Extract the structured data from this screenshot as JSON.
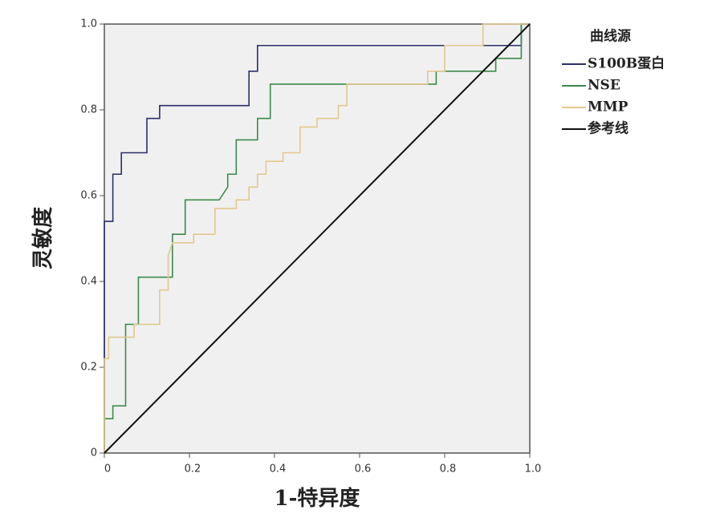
{
  "chart_data": {
    "type": "line",
    "xlabel": "1-特异度",
    "ylabel": "灵敏度",
    "legend_title": "曲线源",
    "legend_position": "right",
    "xlim": [
      0,
      1
    ],
    "ylim": [
      0,
      1
    ],
    "xticks": [
      0,
      0.2,
      0.4,
      0.6,
      0.8,
      {
        "value": 1,
        "label": "1.0"
      }
    ],
    "yticks": [
      0,
      0.2,
      0.4,
      0.6,
      0.8,
      {
        "value": 1,
        "label": "1.0"
      }
    ],
    "series": [
      {
        "name": "S100B蛋白",
        "color": "#2b2f6b",
        "x": [
          0,
          0,
          0.02,
          0.02,
          0.04,
          0.04,
          0.1,
          0.1,
          0.13,
          0.13,
          0.34,
          0.34,
          0.36,
          0.36,
          0.98,
          0.98,
          1
        ],
        "values": [
          0,
          0.54,
          0.54,
          0.65,
          0.65,
          0.7,
          0.7,
          0.78,
          0.78,
          0.81,
          0.81,
          0.89,
          0.89,
          0.95,
          0.95,
          1,
          1
        ]
      },
      {
        "name": "NSE",
        "color": "#3d8a4c",
        "x": [
          0,
          0,
          0.02,
          0.02,
          0.05,
          0.05,
          0.08,
          0.08,
          0.16,
          0.16,
          0.19,
          0.19,
          0.27,
          0.29,
          0.29,
          0.31,
          0.31,
          0.36,
          0.36,
          0.39,
          0.39,
          0.78,
          0.78,
          0.92,
          0.92,
          0.98,
          0.98,
          1
        ],
        "values": [
          0,
          0.08,
          0.08,
          0.11,
          0.11,
          0.3,
          0.3,
          0.41,
          0.41,
          0.51,
          0.51,
          0.59,
          0.59,
          0.62,
          0.65,
          0.65,
          0.73,
          0.73,
          0.78,
          0.78,
          0.86,
          0.86,
          0.89,
          0.89,
          0.92,
          0.92,
          1,
          1
        ]
      },
      {
        "name": "MMP",
        "color": "#e2c88e",
        "x": [
          0,
          0,
          0.01,
          0.01,
          0.07,
          0.07,
          0.13,
          0.13,
          0.15,
          0.15,
          0.16,
          0.21,
          0.21,
          0.26,
          0.26,
          0.31,
          0.31,
          0.34,
          0.34,
          0.36,
          0.36,
          0.38,
          0.38,
          0.42,
          0.42,
          0.46,
          0.46,
          0.5,
          0.5,
          0.55,
          0.55,
          0.57,
          0.57,
          0.76,
          0.76,
          0.8,
          0.8,
          0.89,
          0.89,
          1
        ],
        "values": [
          0,
          0.22,
          0.22,
          0.27,
          0.27,
          0.3,
          0.3,
          0.38,
          0.38,
          0.46,
          0.49,
          0.49,
          0.51,
          0.51,
          0.57,
          0.57,
          0.59,
          0.59,
          0.62,
          0.62,
          0.65,
          0.65,
          0.68,
          0.68,
          0.7,
          0.7,
          0.76,
          0.76,
          0.78,
          0.78,
          0.81,
          0.81,
          0.86,
          0.86,
          0.89,
          0.89,
          0.95,
          0.95,
          1,
          1
        ]
      },
      {
        "name": "参考线",
        "color": "#111111",
        "x": [
          0,
          1
        ],
        "values": [
          0,
          1
        ]
      }
    ]
  }
}
